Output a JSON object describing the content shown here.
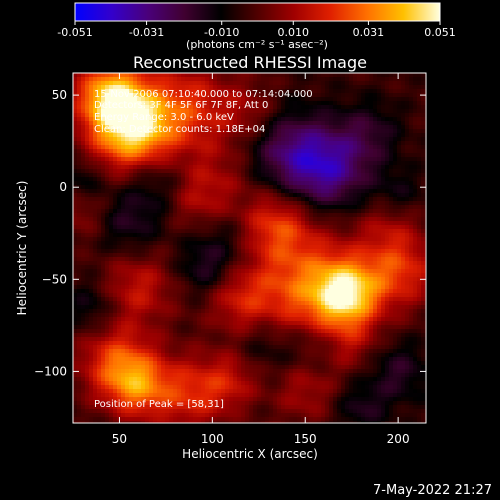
{
  "colorbar": {
    "ticks": [
      "-0.051",
      "-0.031",
      "-0.010",
      "0.010",
      "0.031",
      "0.051"
    ],
    "tick_values": [
      -0.051,
      -0.031,
      -0.01,
      0.01,
      0.031,
      0.051
    ],
    "range": [
      -0.051,
      0.051
    ],
    "unit_label": "(photons cm⁻² s⁻¹ asec⁻²)",
    "stops": [
      "#0000ff",
      "#3300cc",
      "#4a007a",
      "#400030",
      "#000000",
      "#500000",
      "#a00000",
      "#e02000",
      "#ff7000",
      "#ffc000",
      "#ffffe0"
    ]
  },
  "chart_data": {
    "type": "heatmap",
    "title": "Reconstructed RHESSI Image",
    "xlabel": "Heliocentric X (arcsec)",
    "ylabel": "Heliocentric Y (arcsec)",
    "xlim": [
      25,
      215
    ],
    "ylim": [
      -128,
      62
    ],
    "xticks": [
      50,
      100,
      150,
      200
    ],
    "yticks": [
      50,
      0,
      -50,
      -100
    ],
    "xtick_labels": [
      "50",
      "100",
      "150",
      "200"
    ],
    "ytick_labels": [
      "50",
      "0",
      "−50",
      "−100"
    ],
    "grid": false,
    "annotations": [
      "15-Nov-2006 07:10:40.000 to 07:14:04.000",
      "Detectors: 3F 4F 5F 6F 7F 8F, Att 0",
      "Energy Range: 3.0 - 6.0 keV",
      "Clean: Detector counts: 1.18E+04"
    ],
    "peak_label": "Position of Peak = [58,31]",
    "hot_regions": [
      {
        "x": 58,
        "y": 31,
        "sigma": 16,
        "value": 0.051
      },
      {
        "x": 45,
        "y": 50,
        "sigma": 13,
        "value": 0.038
      },
      {
        "x": 88,
        "y": 45,
        "sigma": 16,
        "value": 0.02
      },
      {
        "x": 120,
        "y": 40,
        "sigma": 12,
        "value": 0.012
      },
      {
        "x": 100,
        "y": 5,
        "sigma": 16,
        "value": 0.013
      },
      {
        "x": 90,
        "y": -8,
        "sigma": 11,
        "value": 0.01
      },
      {
        "x": 135,
        "y": -20,
        "sigma": 13,
        "value": 0.022
      },
      {
        "x": 195,
        "y": -18,
        "sigma": 12,
        "value": 0.012
      },
      {
        "x": 150,
        "y": -55,
        "sigma": 22,
        "value": 0.03
      },
      {
        "x": 172,
        "y": -58,
        "sigma": 12,
        "value": 0.04
      },
      {
        "x": 200,
        "y": -45,
        "sigma": 14,
        "value": 0.024
      },
      {
        "x": 115,
        "y": -62,
        "sigma": 12,
        "value": 0.015
      },
      {
        "x": 60,
        "y": -55,
        "sigma": 14,
        "value": 0.018
      },
      {
        "x": 48,
        "y": -95,
        "sigma": 14,
        "value": 0.025
      },
      {
        "x": 60,
        "y": -108,
        "sigma": 12,
        "value": 0.028
      },
      {
        "x": 88,
        "y": -112,
        "sigma": 14,
        "value": 0.022
      },
      {
        "x": 110,
        "y": -105,
        "sigma": 11,
        "value": 0.015
      },
      {
        "x": 150,
        "y": -112,
        "sigma": 12,
        "value": 0.012
      },
      {
        "x": 175,
        "y": -85,
        "sigma": 11,
        "value": 0.01
      },
      {
        "x": 30,
        "y": -15,
        "sigma": 9,
        "value": 0.01
      }
    ],
    "cold_regions": [
      {
        "x": 162,
        "y": 10,
        "sigma": 16,
        "value": -0.03
      },
      {
        "x": 140,
        "y": 20,
        "sigma": 16,
        "value": -0.02
      },
      {
        "x": 185,
        "y": 30,
        "sigma": 12,
        "value": -0.012
      },
      {
        "x": 70,
        "y": 5,
        "sigma": 14,
        "value": -0.015
      },
      {
        "x": 55,
        "y": -20,
        "sigma": 12,
        "value": -0.012
      },
      {
        "x": 95,
        "y": -45,
        "sigma": 10,
        "value": -0.012
      },
      {
        "x": 105,
        "y": -30,
        "sigma": 12,
        "value": -0.01
      },
      {
        "x": 200,
        "y": -5,
        "sigma": 10,
        "value": -0.012
      },
      {
        "x": 200,
        "y": -100,
        "sigma": 12,
        "value": -0.014
      },
      {
        "x": 180,
        "y": -120,
        "sigma": 10,
        "value": -0.012
      },
      {
        "x": 130,
        "y": -85,
        "sigma": 12,
        "value": -0.012
      },
      {
        "x": 155,
        "y": -85,
        "sigma": 10,
        "value": -0.01
      },
      {
        "x": 35,
        "y": -65,
        "sigma": 10,
        "value": -0.012
      },
      {
        "x": 30,
        "y": 5,
        "sigma": 8,
        "value": -0.01
      }
    ]
  },
  "timestamp": "7-May-2022 21:27"
}
